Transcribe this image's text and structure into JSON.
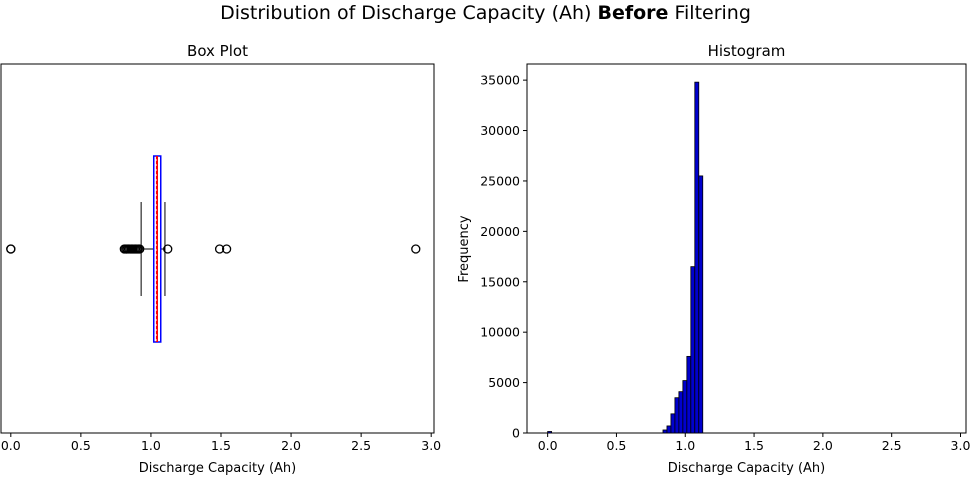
{
  "figure": {
    "title_part1": "Distribution of Discharge Capacity (Ah) ",
    "title_bold": "Before",
    "title_part2": " Filtering"
  },
  "chart_data": [
    {
      "type": "box",
      "title": "Box Plot",
      "xlabel": "Discharge Capacity (Ah)",
      "ylabel": "",
      "orientation": "horizontal",
      "xlim": [
        -0.07,
        3.02
      ],
      "xticks": [
        "0.0",
        "0.5",
        "1.0",
        "1.5",
        "2.0",
        "2.5",
        "3.0"
      ],
      "stats": {
        "whisker_low": 0.93,
        "q1": 1.02,
        "median": 1.045,
        "mean": 1.04,
        "q3": 1.07,
        "whisker_high": 1.1
      },
      "outliers": [
        0.0,
        0.0,
        0.81,
        0.82,
        0.83,
        0.84,
        0.85,
        0.86,
        0.87,
        0.88,
        0.89,
        0.9,
        0.91,
        0.92,
        1.12,
        1.49,
        1.54,
        2.89
      ],
      "colors": {
        "box": "#0000ff",
        "median": "#ff0000",
        "mean": "#ff0000"
      }
    },
    {
      "type": "bar",
      "title": "Histogram",
      "xlabel": "Discharge Capacity (Ah)",
      "ylabel": "Frequency",
      "xlim": [
        -0.15,
        3.04
      ],
      "ylim": [
        0,
        36600
      ],
      "xticks": [
        "0.0",
        "0.5",
        "1.0",
        "1.5",
        "2.0",
        "2.5",
        "3.0"
      ],
      "yticks": [
        "0",
        "5000",
        "10000",
        "15000",
        "20000",
        "25000",
        "30000",
        "35000"
      ],
      "bin_width": 0.0289,
      "bin_starts": [
        0.0,
        0.8381,
        0.867,
        0.8959,
        0.9248,
        0.9537,
        0.9826,
        1.0115,
        1.0404,
        1.0693,
        1.0982
      ],
      "frequencies": [
        150,
        300,
        700,
        1900,
        3500,
        4100,
        5200,
        7600,
        16500,
        34800,
        25500
      ],
      "colors": {
        "fill": "#0000cd",
        "edge": "#000000"
      }
    }
  ]
}
